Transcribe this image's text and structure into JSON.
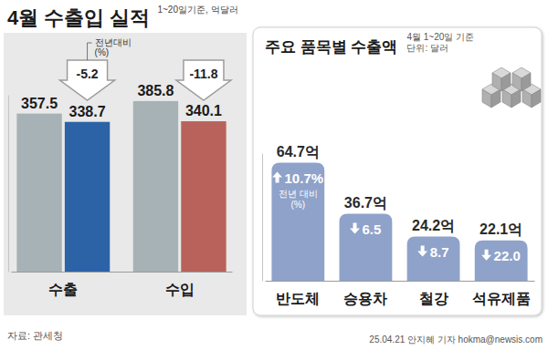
{
  "chart_data": [
    {
      "type": "bar",
      "title": "4월 수출입 실적",
      "subtitle": "1~20일기준, 억달러",
      "categories": [
        "수출",
        "수입"
      ],
      "series": [
        {
          "color": "#a7b2b6",
          "values": [
            357.5,
            385.8
          ]
        },
        {
          "colors": [
            "#2c63a7",
            "#b9625b"
          ],
          "values": [
            338.7,
            340.1
          ],
          "change": [
            -5.2,
            -11.8
          ]
        }
      ],
      "annotation": "전년대비 (%)",
      "ylim": [
        0,
        400
      ],
      "tick_labels": false,
      "data_labels": true
    },
    {
      "type": "bar",
      "title": "주요 품목별 수출액",
      "subtitle": [
        "4월 1~20일 기준",
        "단위: 달러"
      ],
      "categories": [
        "반도체",
        "승용차",
        "철강",
        "석유제품"
      ],
      "values": [
        64.7,
        36.7,
        24.2,
        22.1
      ],
      "value_labels": [
        "64.7억",
        "36.7억",
        "24.2억",
        "22.1억"
      ],
      "color": "#8fa2c9",
      "change": [
        10.7,
        -6.5,
        -8.7,
        -22.0
      ],
      "change_labels": [
        "10.7%",
        "6.5",
        "8.7",
        "22.0"
      ],
      "annotation": "전년 대비 (%)",
      "ylim": [
        0,
        70
      ],
      "tick_labels": false,
      "data_labels": true
    }
  ],
  "source": "자료: 관세청",
  "credit": "25.04.21 안지혜 기자 hokma@newsis.com"
}
